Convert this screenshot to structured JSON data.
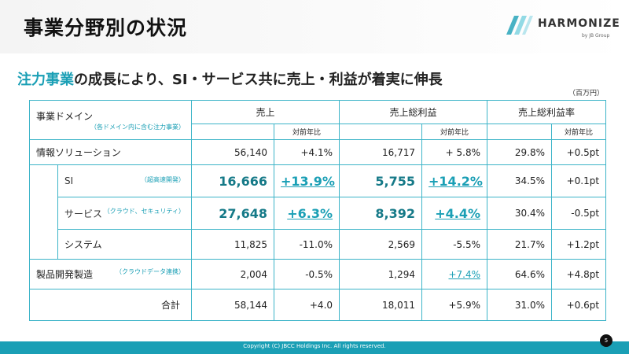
{
  "title": "事業分野別の状況",
  "logo": {
    "name": "HARMONIZE",
    "sub": "by JB Group"
  },
  "subtitle": {
    "highlight": "注力事業",
    "rest": "の成長により、SI・サービス共に売上・利益が着実に伸長"
  },
  "unit": "（百万円）",
  "table": {
    "header": {
      "domain": "事業ドメイン",
      "domain_note": "（各ドメイン内に含む注力事業）",
      "sales": "売上",
      "gross_profit": "売上総利益",
      "gross_margin": "売上総利益率",
      "yoy": "対前年比"
    },
    "rows": [
      {
        "name": "情報ソリューション",
        "note": "",
        "sales": "56,140",
        "sales_yoy": "+4.1%",
        "gp": "16,717",
        "gp_yoy": "+ 5.8%",
        "gm": "29.8%",
        "gm_yoy": "+0.5pt"
      },
      {
        "name": "SI",
        "note": "（超高速開発）",
        "sales": "16,666",
        "sales_yoy": "+13.9%",
        "gp": "5,755",
        "gp_yoy": "+14.2%",
        "gm": "34.5%",
        "gm_yoy": "+0.1pt"
      },
      {
        "name": "サービス",
        "note": "（クラウド、セキュリティ）",
        "sales": "27,648",
        "sales_yoy": "+6.3%",
        "gp": "8,392",
        "gp_yoy": "+4.4%",
        "gm": "30.4%",
        "gm_yoy": "-0.5pt"
      },
      {
        "name": "システム",
        "note": "",
        "sales": "11,825",
        "sales_yoy": "-11.0%",
        "gp": "2,569",
        "gp_yoy": "-5.5%",
        "gm": "21.7%",
        "gm_yoy": "+1.2pt"
      },
      {
        "name": "製品開発製造",
        "note": "（クラウドデータ連携）",
        "sales": "2,004",
        "sales_yoy": "-0.5%",
        "gp": "1,294",
        "gp_yoy": "+7.4%",
        "gm": "64.6%",
        "gm_yoy": "+4.8pt"
      },
      {
        "name": "合計",
        "note": "",
        "sales": "58,144",
        "sales_yoy": "+4.0",
        "gp": "18,011",
        "gp_yoy": "+5.9%",
        "gm": "31.0%",
        "gm_yoy": "+0.6pt"
      }
    ]
  },
  "footer": {
    "copyright": "Copyright (C) JBCC Holdings Inc. All rights reserved."
  },
  "page_number": "5",
  "colors": {
    "accent": "#1a9fb5",
    "footer_bg": "#1a9fb5",
    "title_text": "#111111"
  }
}
